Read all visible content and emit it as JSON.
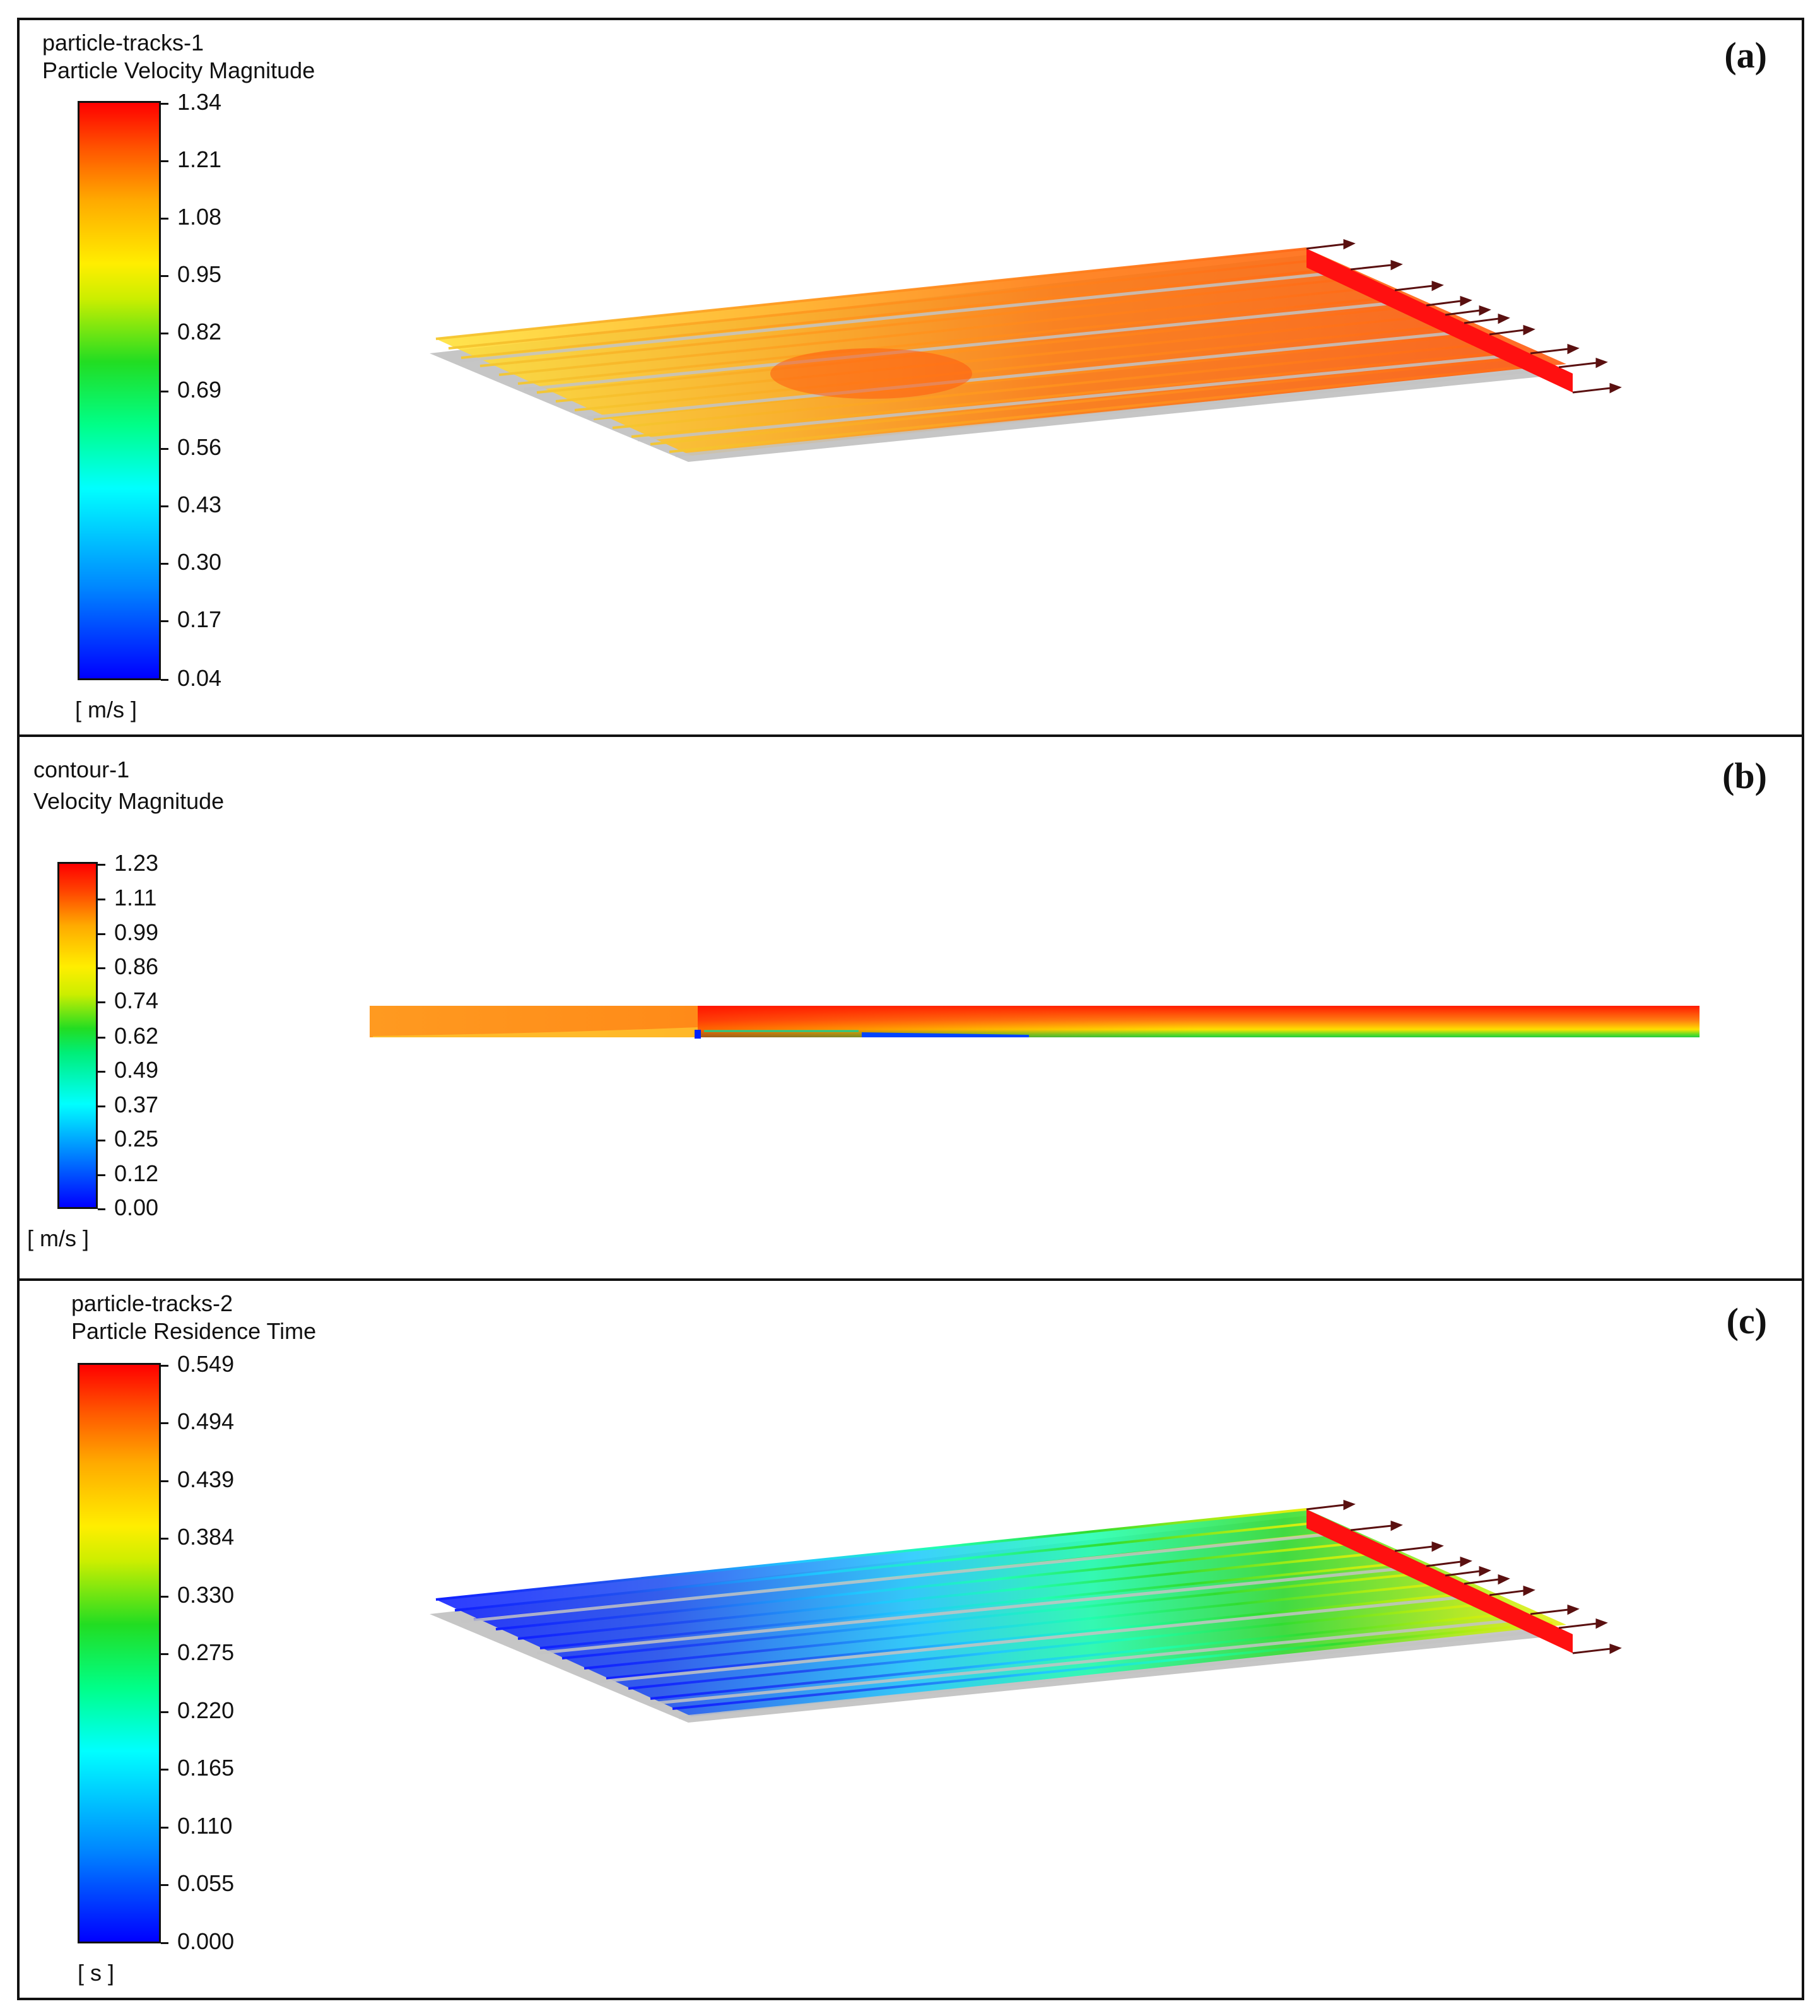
{
  "panel_a": {
    "object": "particle-tracks-1",
    "quantity": "Particle Velocity Magnitude",
    "label": "(a)",
    "unit": "[ m/s ]",
    "ticks": [
      "1.34",
      "1.21",
      "1.08",
      "0.95",
      "0.82",
      "0.69",
      "0.56",
      "0.43",
      "0.30",
      "0.17",
      "0.04"
    ]
  },
  "panel_b": {
    "object": "contour-1",
    "quantity": "Velocity Magnitude",
    "label": "(b)",
    "unit": "[ m/s ]",
    "ticks": [
      "1.23",
      "1.11",
      "0.99",
      "0.86",
      "0.74",
      "0.62",
      "0.49",
      "0.37",
      "0.25",
      "0.12",
      "0.00"
    ]
  },
  "panel_c": {
    "object": "particle-tracks-2",
    "quantity": "Particle Residence Time",
    "label": "(c)",
    "unit": "[ s ]",
    "ticks": [
      "0.549",
      "0.494",
      "0.439",
      "0.384",
      "0.330",
      "0.275",
      "0.220",
      "0.165",
      "0.110",
      "0.055",
      "0.000"
    ]
  },
  "colors": {
    "frame": "#111111",
    "track_grey": "#bbbbbb",
    "outlet_red": "#ff1010",
    "arrow": "#5a1010"
  }
}
